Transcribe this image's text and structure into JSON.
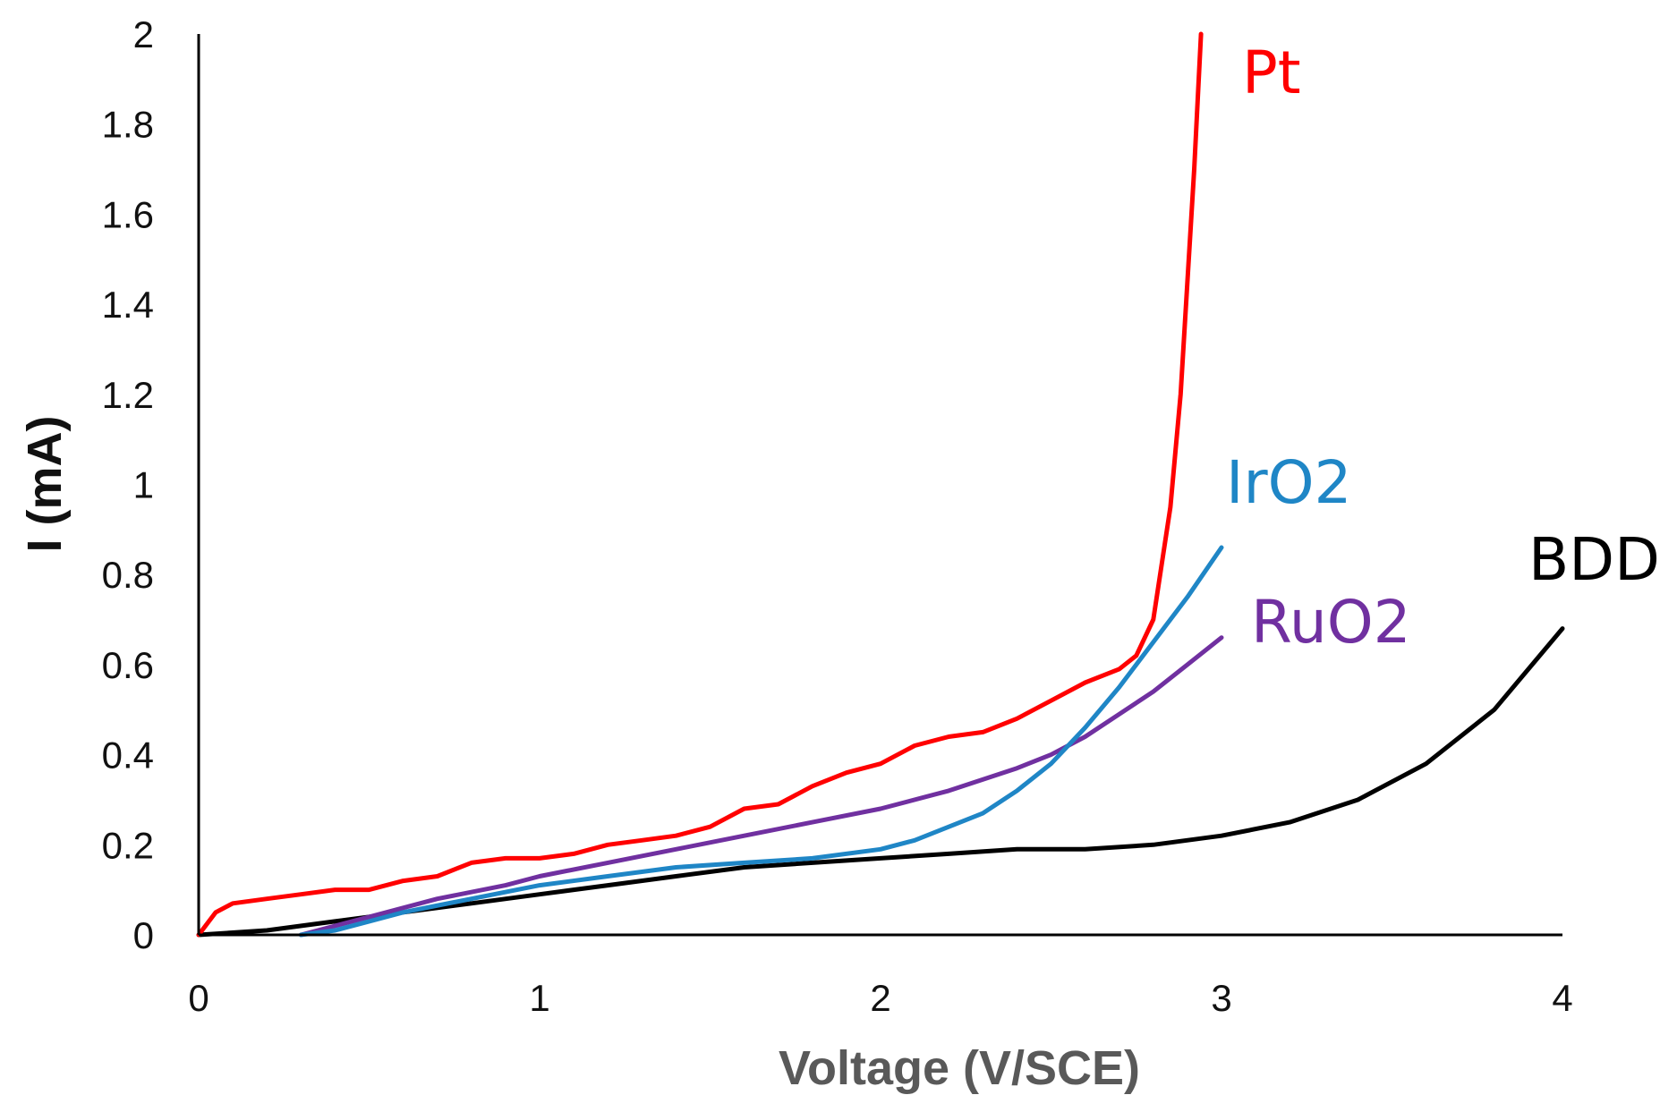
{
  "chart_data": {
    "type": "line",
    "title": "",
    "xlabel": "Voltage (V/SCE)",
    "ylabel": "I (mA)",
    "xlim": [
      0,
      4
    ],
    "ylim": [
      0,
      2
    ],
    "x_ticks": [
      "0",
      "1",
      "2",
      "3",
      "4"
    ],
    "y_ticks": [
      "0",
      "0.2",
      "0.4",
      "0.6",
      "0.8",
      "1",
      "1.2",
      "1.4",
      "1.6",
      "1.8",
      "2"
    ],
    "grid": false,
    "legend": "inline labels at line ends",
    "series": [
      {
        "name": "Pt",
        "color": "#ff0000",
        "x": [
          0,
          0.05,
          0.1,
          0.2,
          0.3,
          0.4,
          0.5,
          0.6,
          0.7,
          0.8,
          0.9,
          1.0,
          1.1,
          1.2,
          1.3,
          1.4,
          1.5,
          1.6,
          1.7,
          1.8,
          1.9,
          2.0,
          2.1,
          2.2,
          2.3,
          2.4,
          2.5,
          2.6,
          2.7,
          2.75,
          2.8,
          2.85,
          2.88,
          2.9,
          2.92,
          2.93,
          2.94
        ],
        "y": [
          0,
          0.05,
          0.07,
          0.08,
          0.09,
          0.1,
          0.1,
          0.12,
          0.13,
          0.16,
          0.17,
          0.17,
          0.18,
          0.2,
          0.21,
          0.22,
          0.24,
          0.28,
          0.29,
          0.33,
          0.36,
          0.38,
          0.42,
          0.44,
          0.45,
          0.48,
          0.52,
          0.56,
          0.59,
          0.62,
          0.7,
          0.95,
          1.2,
          1.45,
          1.7,
          1.85,
          2.0
        ]
      },
      {
        "name": "IrO2",
        "color": "#1f86c6",
        "x": [
          0.3,
          0.4,
          0.5,
          0.6,
          0.8,
          1.0,
          1.2,
          1.4,
          1.6,
          1.8,
          2.0,
          2.1,
          2.2,
          2.3,
          2.4,
          2.5,
          2.6,
          2.7,
          2.8,
          2.9,
          3.0
        ],
        "y": [
          0,
          0.01,
          0.03,
          0.05,
          0.08,
          0.11,
          0.13,
          0.15,
          0.16,
          0.17,
          0.19,
          0.21,
          0.24,
          0.27,
          0.32,
          0.38,
          0.46,
          0.55,
          0.65,
          0.75,
          0.86
        ]
      },
      {
        "name": "RuO2",
        "color": "#7030a0",
        "x": [
          0.3,
          0.5,
          0.7,
          0.9,
          1.0,
          1.2,
          1.4,
          1.6,
          1.8,
          2.0,
          2.2,
          2.4,
          2.5,
          2.6,
          2.7,
          2.8,
          2.9,
          3.0
        ],
        "y": [
          0,
          0.04,
          0.08,
          0.11,
          0.13,
          0.16,
          0.19,
          0.22,
          0.25,
          0.28,
          0.32,
          0.37,
          0.4,
          0.44,
          0.49,
          0.54,
          0.6,
          0.66
        ]
      },
      {
        "name": "BDD",
        "color": "#000000",
        "x": [
          0,
          0.2,
          0.4,
          0.6,
          0.8,
          1.0,
          1.2,
          1.4,
          1.6,
          1.8,
          2.0,
          2.2,
          2.4,
          2.6,
          2.8,
          3.0,
          3.2,
          3.4,
          3.6,
          3.8,
          4.0
        ],
        "y": [
          0,
          0.01,
          0.03,
          0.05,
          0.07,
          0.09,
          0.11,
          0.13,
          0.15,
          0.16,
          0.17,
          0.18,
          0.19,
          0.19,
          0.2,
          0.22,
          0.25,
          0.3,
          0.38,
          0.5,
          0.68
        ]
      }
    ]
  }
}
